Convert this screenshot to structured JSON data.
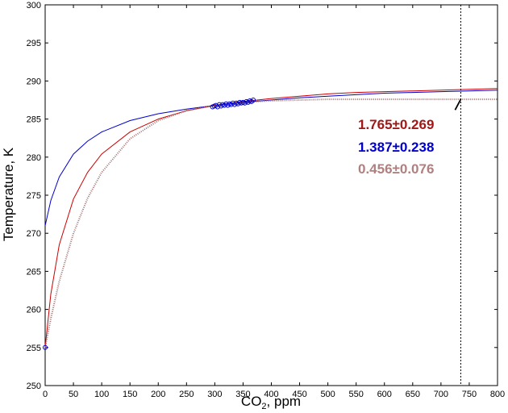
{
  "chart_data": {
    "type": "line",
    "title": "",
    "xlabel_main": "CO",
    "xlabel_sub": "2",
    "xlabel_rest": ", ppm",
    "ylabel": "Temperature, K",
    "xlim": [
      0,
      800
    ],
    "ylim": [
      250,
      300
    ],
    "x_ticks": [
      "0",
      "50",
      "100",
      "150",
      "200",
      "250",
      "300",
      "350",
      "400",
      "450",
      "500",
      "550",
      "600",
      "650",
      "700",
      "750",
      "800"
    ],
    "y_ticks": [
      "250",
      "255",
      "260",
      "265",
      "270",
      "275",
      "280",
      "285",
      "290",
      "295",
      "300"
    ],
    "grid": false,
    "series": [
      {
        "color": "#0000cc",
        "style": "solid",
        "x": [
          0,
          10,
          25,
          50,
          75,
          100,
          150,
          200,
          250,
          300,
          350,
          400,
          450,
          500,
          550,
          600,
          650,
          700,
          750,
          800
        ],
        "y": [
          271.0,
          274.3,
          277.4,
          280.4,
          282.1,
          283.3,
          284.8,
          285.7,
          286.3,
          286.8,
          287.2,
          287.5,
          287.8,
          288.0,
          288.2,
          288.4,
          288.5,
          288.6,
          288.7,
          288.8
        ]
      },
      {
        "color": "#cc0000",
        "style": "solid",
        "x": [
          0,
          10,
          25,
          50,
          75,
          100,
          150,
          200,
          250,
          300,
          350,
          400,
          450,
          500,
          550,
          600,
          650,
          700,
          750,
          800
        ],
        "y": [
          255.0,
          262.0,
          268.5,
          274.5,
          278.0,
          280.4,
          283.3,
          285.0,
          286.1,
          286.8,
          287.3,
          287.7,
          288.0,
          288.3,
          288.5,
          288.6,
          288.7,
          288.8,
          288.9,
          289.0
        ]
      },
      {
        "color": "#a07070",
        "style": "dotted",
        "x": [
          0,
          10,
          25,
          50,
          75,
          100,
          150,
          200,
          250,
          300,
          350,
          400,
          450,
          500,
          550,
          600,
          650,
          700,
          750,
          800
        ],
        "y": [
          255.0,
          258.8,
          263.7,
          270.0,
          274.6,
          278.0,
          282.4,
          284.8,
          286.1,
          286.8,
          287.2,
          287.4,
          287.5,
          287.6,
          287.6,
          287.6,
          287.6,
          287.6,
          287.6,
          287.6
        ]
      }
    ],
    "observations": {
      "color": "#0000cc",
      "points": [
        [
          0,
          255.0
        ],
        [
          296,
          286.6
        ],
        [
          299,
          286.7
        ],
        [
          302,
          286.8
        ],
        [
          305,
          286.6
        ],
        [
          308,
          286.9
        ],
        [
          311,
          286.7
        ],
        [
          314,
          286.9
        ],
        [
          317,
          286.8
        ],
        [
          320,
          287.0
        ],
        [
          323,
          286.8
        ],
        [
          326,
          287.0
        ],
        [
          329,
          286.9
        ],
        [
          332,
          287.1
        ],
        [
          335,
          286.9
        ],
        [
          338,
          287.1
        ],
        [
          341,
          287.0
        ],
        [
          344,
          287.2
        ],
        [
          347,
          287.1
        ],
        [
          350,
          287.2
        ],
        [
          353,
          287.1
        ],
        [
          356,
          287.3
        ],
        [
          359,
          287.2
        ],
        [
          362,
          287.4
        ],
        [
          365,
          287.3
        ],
        [
          368,
          287.5
        ]
      ]
    },
    "vertical_line": {
      "x": 735,
      "style": "dashed"
    },
    "pointer": {
      "from": [
        725,
        286.2
      ],
      "to": [
        735,
        287.6
      ]
    },
    "annotations": [
      {
        "text": "1.765±0.269",
        "color": "#a01818"
      },
      {
        "text": "1.387±0.238",
        "color": "#0000cc"
      },
      {
        "text": "0.456±0.076",
        "color": "#b08080"
      }
    ]
  }
}
